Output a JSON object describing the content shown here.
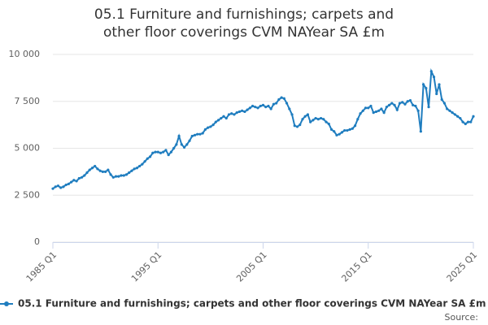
{
  "chart_data": {
    "type": "line",
    "title": "05.1 Furniture and furnishings; carpets and other floor coverings CVM NAYear SA £m",
    "categories": [
      "1985 Q1",
      null,
      null,
      null,
      null,
      null,
      null,
      null,
      null,
      null,
      null,
      null,
      null,
      null,
      null,
      null,
      null,
      null,
      null,
      null,
      null,
      null,
      null,
      null,
      null,
      null,
      null,
      null,
      null,
      null,
      null,
      null,
      null,
      null,
      null,
      null,
      null,
      null,
      null,
      null,
      "1995 Q1",
      null,
      null,
      null,
      null,
      null,
      null,
      null,
      null,
      null,
      null,
      null,
      null,
      null,
      null,
      null,
      null,
      null,
      null,
      null,
      null,
      null,
      null,
      null,
      null,
      null,
      null,
      null,
      null,
      null,
      null,
      null,
      null,
      null,
      null,
      null,
      null,
      null,
      null,
      null,
      "2005 Q1",
      null,
      null,
      null,
      null,
      null,
      null,
      null,
      null,
      null,
      null,
      null,
      null,
      null,
      null,
      null,
      null,
      null,
      null,
      null,
      null,
      null,
      null,
      null,
      null,
      null,
      null,
      null,
      null,
      null,
      null,
      null,
      null,
      null,
      null,
      null,
      null,
      null,
      null,
      null,
      "2015 Q1",
      null,
      null,
      null,
      null,
      null,
      null,
      null,
      null,
      null,
      null,
      null,
      null,
      null,
      null,
      null,
      null,
      null,
      null,
      null,
      null,
      null,
      null,
      null,
      null,
      null,
      null,
      null,
      null,
      null,
      null,
      null,
      null,
      null,
      null,
      null,
      null,
      null,
      null,
      null,
      "2025 Q1"
    ],
    "series": [
      {
        "name": "05.1 Furniture and furnishings; carpets and other floor coverings CVM NAYear SA £m",
        "color": "#1f7dbf",
        "values": [
          2850,
          2950,
          3000,
          2900,
          2950,
          3050,
          3100,
          3200,
          3300,
          3250,
          3400,
          3450,
          3550,
          3700,
          3850,
          3950,
          4050,
          3900,
          3800,
          3750,
          3750,
          3850,
          3600,
          3450,
          3500,
          3500,
          3550,
          3550,
          3600,
          3700,
          3800,
          3900,
          3950,
          4050,
          4150,
          4300,
          4450,
          4550,
          4750,
          4800,
          4800,
          4750,
          4800,
          4900,
          4650,
          4800,
          5000,
          5200,
          5650,
          5200,
          5050,
          5200,
          5400,
          5650,
          5700,
          5750,
          5750,
          5800,
          6000,
          6100,
          6150,
          6250,
          6400,
          6500,
          6600,
          6700,
          6600,
          6800,
          6850,
          6800,
          6900,
          6950,
          7000,
          6950,
          7050,
          7150,
          7250,
          7200,
          7150,
          7250,
          7300,
          7200,
          7250,
          7100,
          7350,
          7400,
          7600,
          7700,
          7650,
          7400,
          7100,
          6800,
          6200,
          6150,
          6250,
          6550,
          6700,
          6800,
          6400,
          6500,
          6600,
          6550,
          6600,
          6550,
          6400,
          6300,
          6000,
          5900,
          5700,
          5750,
          5850,
          5950,
          5950,
          6000,
          6050,
          6200,
          6550,
          6850,
          7000,
          7150,
          7150,
          7250,
          6900,
          6950,
          7000,
          7100,
          6900,
          7200,
          7300,
          7400,
          7300,
          7050,
          7400,
          7450,
          7350,
          7500,
          7550,
          7300,
          7250,
          7000,
          5900,
          8400,
          8200,
          7200,
          9100,
          8800,
          7900,
          8400,
          7600,
          7400,
          7100,
          7000,
          6900,
          6800,
          6700,
          6600,
          6400,
          6300,
          6400,
          6400,
          6700
        ]
      }
    ],
    "ylim": [
      0,
      10000
    ],
    "yticks": [
      0,
      {
        "value": 2500,
        "label": "2 500"
      },
      {
        "value": 5000,
        "label": "5 000"
      },
      {
        "value": 7500,
        "label": "7 500"
      },
      {
        "value": 10000,
        "label": "10 000"
      }
    ],
    "grid": true,
    "source": "Source:"
  }
}
